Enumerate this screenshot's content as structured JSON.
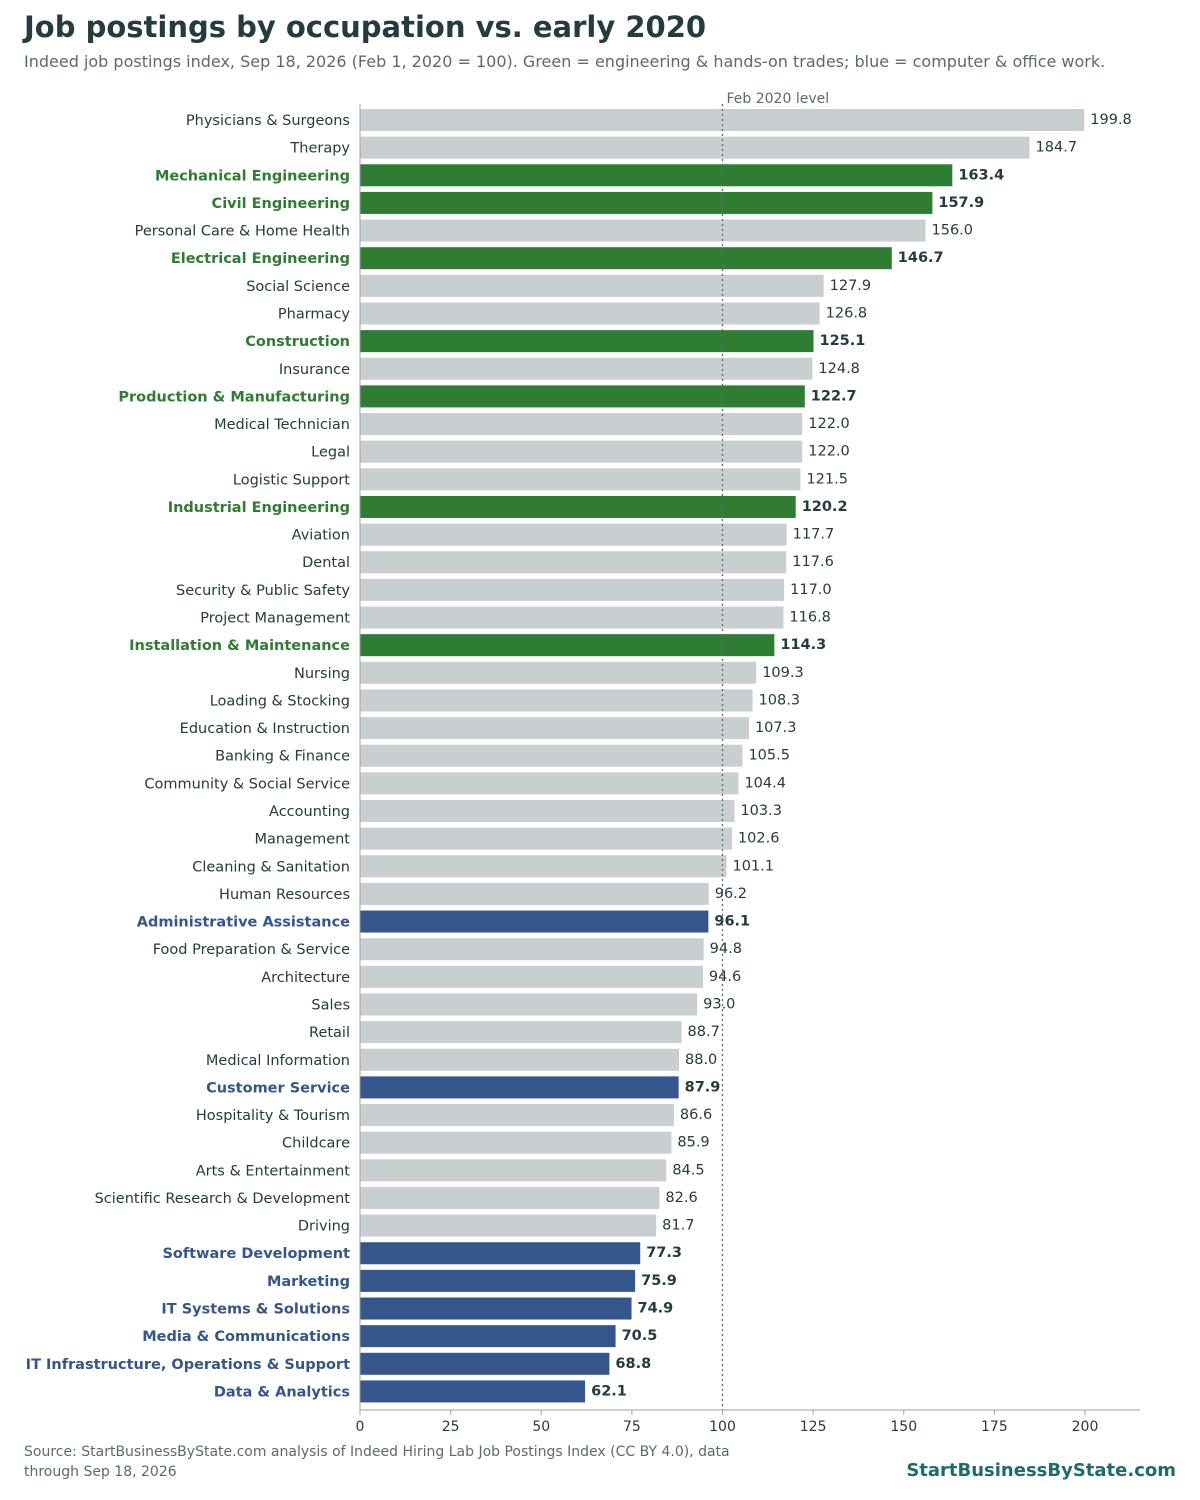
{
  "header": {
    "title": "Job postings by occupation vs. early 2020",
    "subtitle": "Indeed job postings index, Sep 18, 2026 (Feb 1, 2020 = 100). Green = engineering & hands-on trades; blue = computer & office work."
  },
  "footer": {
    "source": "Source: StartBusinessByState.com analysis of Indeed Hiring Lab Job Postings Index (CC BY 4.0), data through Sep 18, 2026",
    "brand": "StartBusinessByState.com"
  },
  "colors": {
    "green": "#2e7d32",
    "blue": "#34568b",
    "gray": "#c9cfd1",
    "text": "#243b3f",
    "reference_line": "#5a6a6e"
  },
  "chart_data": {
    "type": "bar",
    "orientation": "horizontal",
    "xlim": [
      0,
      215
    ],
    "xticks": [
      0,
      25,
      50,
      75,
      100,
      125,
      150,
      175,
      200
    ],
    "reference_line": {
      "value": 100,
      "label": "Feb 2020 level"
    },
    "grid": false,
    "categories": [
      "Physicians & Surgeons",
      "Therapy",
      "Mechanical Engineering",
      "Civil Engineering",
      "Personal Care & Home Health",
      "Electrical Engineering",
      "Social Science",
      "Pharmacy",
      "Construction",
      "Insurance",
      "Production & Manufacturing",
      "Medical Technician",
      "Legal",
      "Logistic Support",
      "Industrial Engineering",
      "Aviation",
      "Dental",
      "Security & Public Safety",
      "Project Management",
      "Installation & Maintenance",
      "Nursing",
      "Loading & Stocking",
      "Education & Instruction",
      "Banking & Finance",
      "Community & Social Service",
      "Accounting",
      "Management",
      "Cleaning & Sanitation",
      "Human Resources",
      "Administrative Assistance",
      "Food Preparation & Service",
      "Architecture",
      "Sales",
      "Retail",
      "Medical Information",
      "Customer Service",
      "Hospitality & Tourism",
      "Childcare",
      "Arts & Entertainment",
      "Scientific Research & Development",
      "Driving",
      "Software Development",
      "Marketing",
      "IT Systems & Solutions",
      "Media & Communications",
      "IT Infrastructure, Operations & Support",
      "Data & Analytics"
    ],
    "values": [
      199.8,
      184.7,
      163.4,
      157.9,
      156.0,
      146.7,
      127.9,
      126.8,
      125.1,
      124.8,
      122.7,
      122.0,
      122.0,
      121.5,
      120.2,
      117.7,
      117.6,
      117.0,
      116.8,
      114.3,
      109.3,
      108.3,
      107.3,
      105.5,
      104.4,
      103.3,
      102.6,
      101.1,
      96.2,
      96.1,
      94.8,
      94.6,
      93.0,
      88.7,
      88.0,
      87.9,
      86.6,
      85.9,
      84.5,
      82.6,
      81.7,
      77.3,
      75.9,
      74.9,
      70.5,
      68.8,
      62.1
    ],
    "value_labels": [
      "199.8",
      "184.7",
      "163.4",
      "157.9",
      "156.0",
      "146.7",
      "127.9",
      "126.8",
      "125.1",
      "124.8",
      "122.7",
      "122.0",
      "122.0",
      "121.5",
      "120.2",
      "117.7",
      "117.6",
      "117.0",
      "116.8",
      "114.3",
      "109.3",
      "108.3",
      "107.3",
      "105.5",
      "104.4",
      "103.3",
      "102.6",
      "101.1",
      "96.2",
      "96.1",
      "94.8",
      "94.6",
      "93.0",
      "88.7",
      "88.0",
      "87.9",
      "86.6",
      "85.9",
      "84.5",
      "82.6",
      "81.7",
      "77.3",
      "75.9",
      "74.9",
      "70.5",
      "68.8",
      "62.1"
    ],
    "groups": [
      "other",
      "other",
      "green",
      "green",
      "other",
      "green",
      "other",
      "other",
      "green",
      "other",
      "green",
      "other",
      "other",
      "other",
      "green",
      "other",
      "other",
      "other",
      "other",
      "green",
      "other",
      "other",
      "other",
      "other",
      "other",
      "other",
      "other",
      "other",
      "other",
      "blue",
      "other",
      "other",
      "other",
      "other",
      "other",
      "blue",
      "other",
      "other",
      "other",
      "other",
      "other",
      "blue",
      "blue",
      "blue",
      "blue",
      "blue",
      "blue"
    ]
  }
}
